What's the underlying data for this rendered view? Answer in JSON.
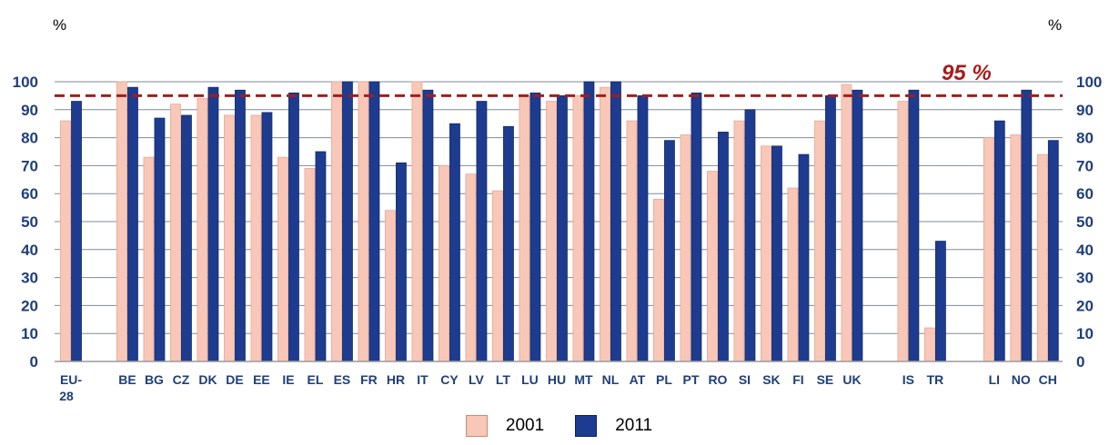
{
  "chart_data": {
    "type": "bar",
    "y_unit_left": "%",
    "y_unit_right": "%",
    "ylim": [
      0,
      100
    ],
    "yticks": [
      0,
      10,
      20,
      30,
      40,
      50,
      60,
      70,
      80,
      90,
      100
    ],
    "grid": true,
    "legend_position": "bottom-center",
    "reference_line": {
      "value": 95,
      "label": "95 %",
      "color": "#a51c1c"
    },
    "categories": [
      "EU-28",
      "BE",
      "BG",
      "CZ",
      "DK",
      "DE",
      "EE",
      "IE",
      "EL",
      "ES",
      "FR",
      "HR",
      "IT",
      "CY",
      "LV",
      "LT",
      "LU",
      "HU",
      "MT",
      "NL",
      "AT",
      "PL",
      "PT",
      "RO",
      "SI",
      "SK",
      "FI",
      "SE",
      "UK",
      "IS",
      "TR",
      "LI",
      "NO",
      "CH"
    ],
    "series": [
      {
        "name": "2001",
        "color": "#f8c7b8",
        "values": [
          86,
          100,
          73,
          92,
          94,
          88,
          88,
          73,
          69,
          100,
          100,
          54,
          100,
          70,
          67,
          61,
          95,
          93,
          95,
          98,
          86,
          58,
          81,
          68,
          86,
          77,
          62,
          86,
          99,
          93,
          12,
          80,
          81,
          74
        ]
      },
      {
        "name": "2011",
        "color": "#1d3b8f",
        "values": [
          93,
          98,
          87,
          88,
          98,
          97,
          89,
          96,
          75,
          100,
          100,
          71,
          97,
          85,
          93,
          84,
          96,
          95,
          100,
          100,
          95,
          79,
          96,
          82,
          90,
          77,
          74,
          95,
          97,
          97,
          43,
          86,
          97,
          79
        ]
      }
    ]
  }
}
